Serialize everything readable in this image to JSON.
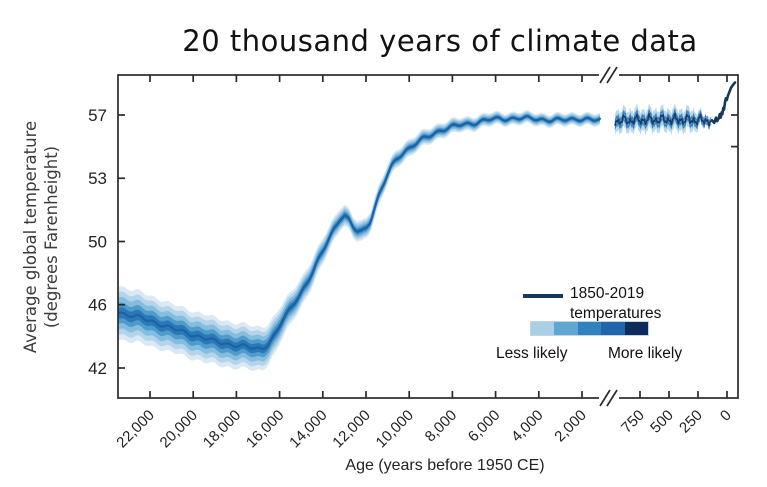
{
  "chart_data": {
    "type": "area",
    "title": "20 thousand years of climate data",
    "ylabel_line1": "Average global temperature",
    "ylabel_line2": "(degrees Farenheight)",
    "xlabel": "Age (years before 1950 CE)",
    "axis_break": true,
    "y_ticks": [
      {
        "label": "57",
        "f": 57.2
      },
      {
        "label": "53",
        "f": 53.6
      },
      {
        "label": "50",
        "f": 50.0
      },
      {
        "label": "46",
        "f": 46.4
      },
      {
        "label": "42",
        "f": 42.8
      }
    ],
    "right_edge_ticks_f": [
      57.2,
      55.4
    ],
    "x_ticks_left": [
      {
        "label": "22,000",
        "age": 22000
      },
      {
        "label": "20,000",
        "age": 20000
      },
      {
        "label": "18,000",
        "age": 18000
      },
      {
        "label": "16,000",
        "age": 16000
      },
      {
        "label": "14,000",
        "age": 14000
      },
      {
        "label": "12,000",
        "age": 12000
      },
      {
        "label": "10,000",
        "age": 10000
      },
      {
        "label": "8,000",
        "age": 8000
      },
      {
        "label": "6,000",
        "age": 6000
      },
      {
        "label": "4,000",
        "age": 4000
      },
      {
        "label": "2,000",
        "age": 2000
      }
    ],
    "x_ticks_right": [
      {
        "label": "750",
        "age": 750
      },
      {
        "label": "500",
        "age": 500
      },
      {
        "label": "250",
        "age": 250
      },
      {
        "label": "0",
        "age": 0
      }
    ],
    "colors": {
      "band_levels": [
        "#dbe9f5",
        "#b3d4ea",
        "#85bddd",
        "#4f9bcb",
        "#2a78b5"
      ],
      "paleo_center_line": "#1d62a6",
      "modern_line": "#17375e",
      "modern_echo": "#2166ac",
      "axis": "#2a2a2a",
      "tick_text": "#222222"
    },
    "legend": {
      "line_label_1": "1850-2019",
      "line_label_2": "temperatures",
      "less_label": "Less likely",
      "more_label": "More likely",
      "gradient_colors": [
        "#a9cfe5",
        "#5fa6d1",
        "#3181bd",
        "#2166ac",
        "#0d2c5a"
      ]
    },
    "paleo_series_age_tempF_halfwidthF": [
      [
        23481,
        46.0,
        0.7
      ],
      [
        23100,
        45.85,
        0.68
      ],
      [
        22700,
        45.75,
        0.67
      ],
      [
        22300,
        45.6,
        0.66
      ],
      [
        21900,
        45.45,
        0.65
      ],
      [
        21500,
        45.3,
        0.64
      ],
      [
        21100,
        45.1,
        0.63
      ],
      [
        20700,
        44.95,
        0.62
      ],
      [
        20300,
        44.8,
        0.62
      ],
      [
        19900,
        44.65,
        0.62
      ],
      [
        19500,
        44.5,
        0.62
      ],
      [
        19100,
        44.35,
        0.61
      ],
      [
        18700,
        44.25,
        0.6
      ],
      [
        18300,
        44.15,
        0.59
      ],
      [
        17900,
        44.05,
        0.58
      ],
      [
        17500,
        44.0,
        0.57
      ],
      [
        17100,
        43.9,
        0.57
      ],
      [
        16800,
        43.95,
        0.55
      ],
      [
        16500,
        44.2,
        0.52
      ],
      [
        16200,
        44.7,
        0.49
      ],
      [
        15900,
        45.4,
        0.45
      ],
      [
        15600,
        46.0,
        0.42
      ],
      [
        15300,
        46.6,
        0.39
      ],
      [
        15000,
        47.1,
        0.37
      ],
      [
        14700,
        47.7,
        0.36
      ],
      [
        14400,
        48.4,
        0.35
      ],
      [
        14100,
        49.2,
        0.33
      ],
      [
        13800,
        50.0,
        0.31
      ],
      [
        13500,
        50.7,
        0.3
      ],
      [
        13200,
        51.3,
        0.28
      ],
      [
        13000,
        51.45,
        0.28
      ],
      [
        12800,
        51.2,
        0.27
      ],
      [
        12600,
        50.8,
        0.27
      ],
      [
        12400,
        50.6,
        0.27
      ],
      [
        12200,
        50.6,
        0.27
      ],
      [
        12000,
        50.8,
        0.26
      ],
      [
        11800,
        51.2,
        0.26
      ],
      [
        11600,
        51.9,
        0.26
      ],
      [
        11400,
        52.6,
        0.25
      ],
      [
        11200,
        53.2,
        0.25
      ],
      [
        11000,
        53.8,
        0.24
      ],
      [
        10800,
        54.3,
        0.23
      ],
      [
        10600,
        54.7,
        0.23
      ],
      [
        10400,
        54.95,
        0.22
      ],
      [
        10200,
        55.15,
        0.22
      ],
      [
        10000,
        55.3,
        0.22
      ],
      [
        9700,
        55.55,
        0.21
      ],
      [
        9400,
        55.8,
        0.21
      ],
      [
        9100,
        56.0,
        0.2
      ],
      [
        8800,
        56.2,
        0.2
      ],
      [
        8500,
        56.35,
        0.19
      ],
      [
        8200,
        56.45,
        0.19
      ],
      [
        7900,
        56.55,
        0.19
      ],
      [
        7600,
        56.65,
        0.18
      ],
      [
        7300,
        56.7,
        0.18
      ],
      [
        7000,
        56.75,
        0.18
      ],
      [
        6600,
        56.85,
        0.17
      ],
      [
        6200,
        56.95,
        0.17
      ],
      [
        5800,
        57.0,
        0.16
      ],
      [
        5400,
        57.0,
        0.16
      ],
      [
        5000,
        57.0,
        0.16
      ],
      [
        4600,
        57.0,
        0.16
      ],
      [
        4200,
        57.0,
        0.16
      ],
      [
        3800,
        56.95,
        0.16
      ],
      [
        3400,
        56.9,
        0.16
      ],
      [
        3000,
        56.9,
        0.16
      ],
      [
        2600,
        56.95,
        0.16
      ],
      [
        2200,
        57.0,
        0.16
      ],
      [
        1800,
        56.95,
        0.16
      ],
      [
        1500,
        56.9,
        0.16
      ],
      [
        1167,
        56.9,
        0.16
      ]
    ],
    "modern_noisy_band": {
      "start_age": 965,
      "end_age": 132,
      "base_tempF": 56.85,
      "band_halfwidthF": 0.3
    },
    "modern_spike_age_tempF": [
      [
        130,
        56.9
      ],
      [
        110,
        56.75
      ],
      [
        95,
        57.05
      ],
      [
        85,
        56.85
      ],
      [
        72,
        57.0
      ],
      [
        62,
        57.25
      ],
      [
        54,
        57.05
      ],
      [
        46,
        57.35
      ],
      [
        40,
        57.25
      ],
      [
        32,
        57.6
      ],
      [
        26,
        57.5
      ],
      [
        18,
        57.9
      ],
      [
        10,
        58.15
      ],
      [
        2,
        58.05
      ],
      [
        -8,
        58.3
      ],
      [
        -20,
        58.5
      ],
      [
        -35,
        58.75
      ],
      [
        -50,
        58.9
      ],
      [
        -62,
        59.0
      ],
      [
        -69,
        59.05
      ]
    ]
  }
}
